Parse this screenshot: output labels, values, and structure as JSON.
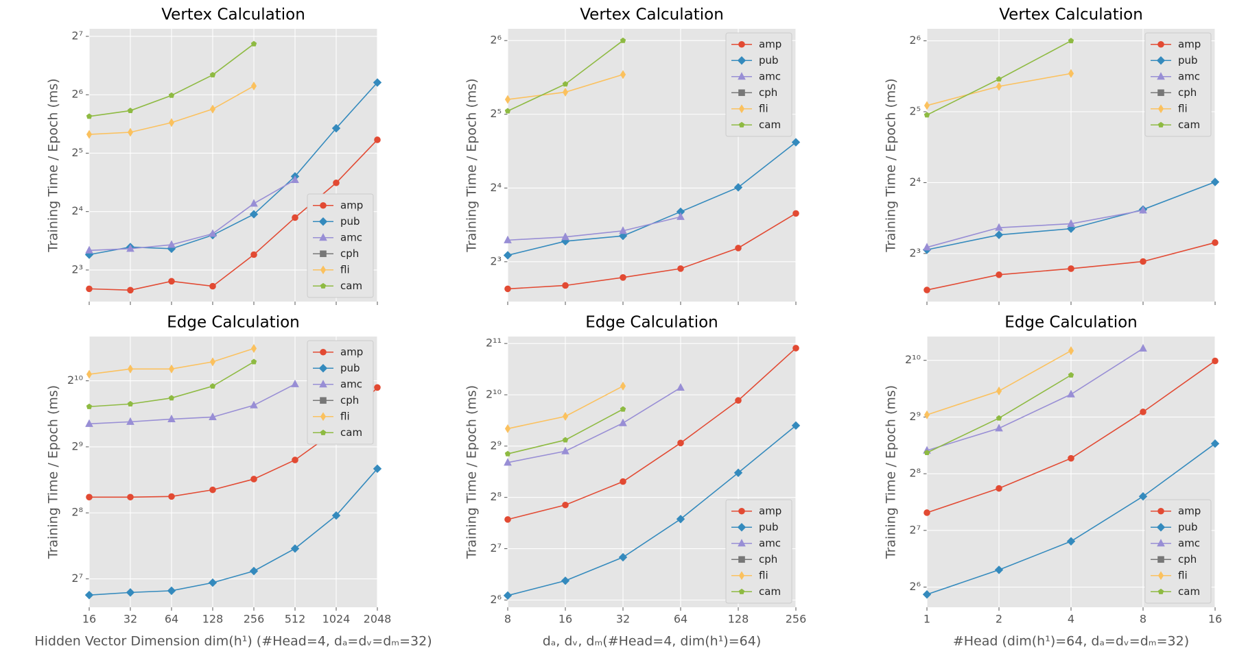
{
  "chart_data": [
    {
      "type": "line",
      "title": "Vertex Calculation",
      "ylabel": "Training Time / Epoch (ms)",
      "xlog": true,
      "ylog": true,
      "grid": true,
      "legend": "lower right",
      "xticklabels": false,
      "x": [
        16,
        32,
        64,
        128,
        256,
        512,
        1024,
        2048
      ],
      "xlim": [
        16,
        2048
      ],
      "xticks": [
        16,
        32,
        64,
        128,
        256,
        512,
        1024,
        2048
      ],
      "ylim": [
        5.5,
        140
      ],
      "yticks": [
        {
          "value": 8,
          "label": "2³"
        },
        {
          "value": 16,
          "label": "2⁴"
        },
        {
          "value": 32,
          "label": "2⁵"
        },
        {
          "value": 64,
          "label": "2⁶"
        },
        {
          "value": 128,
          "label": "2⁷"
        }
      ],
      "series": [
        {
          "name": "amp",
          "color": "#E24A33",
          "marker": "circle",
          "values": [
            6.4,
            6.3,
            7.0,
            6.6,
            9.6,
            14.9,
            22.5,
            37.5
          ]
        },
        {
          "name": "pub",
          "color": "#348ABD",
          "marker": "diamond",
          "values": [
            9.6,
            10.5,
            10.3,
            12.1,
            15.5,
            24.3,
            43,
            74
          ]
        },
        {
          "name": "amc",
          "color": "#988ED5",
          "marker": "triangle",
          "values": [
            10.1,
            10.3,
            10.8,
            12.3,
            17.6,
            23.3,
            null,
            null
          ]
        },
        {
          "name": "cph",
          "color": "#777777",
          "marker": "square",
          "values": [
            null,
            null,
            null,
            null,
            null,
            null,
            null,
            null
          ]
        },
        {
          "name": "fli",
          "color": "#FBC15E",
          "marker": "thin_diamond",
          "values": [
            40,
            41,
            46,
            54,
            71,
            null,
            null,
            null
          ]
        },
        {
          "name": "cam",
          "color": "#8EBA42",
          "marker": "pentagon",
          "values": [
            49.5,
            53,
            63.5,
            81,
            117,
            null,
            null,
            null
          ]
        }
      ]
    },
    {
      "type": "line",
      "title": "Vertex Calculation",
      "ylabel": "Training Time / Epoch (ms)",
      "xlog": true,
      "ylog": true,
      "grid": true,
      "legend": "upper right",
      "xticklabels": false,
      "x": [
        8,
        16,
        32,
        64,
        128,
        256
      ],
      "xlim": [
        8,
        256
      ],
      "xticks": [
        8,
        16,
        32,
        64,
        128,
        256
      ],
      "ylim": [
        5.5,
        71.5
      ],
      "yticks": [
        {
          "value": 8,
          "label": "2³"
        },
        {
          "value": 16,
          "label": "2⁴"
        },
        {
          "value": 32,
          "label": "2⁵"
        },
        {
          "value": 64,
          "label": "2⁶"
        }
      ],
      "series": [
        {
          "name": "amp",
          "color": "#E24A33",
          "marker": "circle",
          "values": [
            6.2,
            6.4,
            6.9,
            7.5,
            9.1,
            12.6
          ]
        },
        {
          "name": "pub",
          "color": "#348ABD",
          "marker": "diamond",
          "values": [
            8.5,
            9.7,
            10.2,
            12.8,
            16.1,
            24.6
          ]
        },
        {
          "name": "amc",
          "color": "#988ED5",
          "marker": "triangle",
          "values": [
            9.8,
            10.1,
            10.7,
            12.2,
            null,
            null
          ]
        },
        {
          "name": "cph",
          "color": "#777777",
          "marker": "square",
          "values": [
            null,
            null,
            null,
            null,
            null,
            null
          ]
        },
        {
          "name": "fli",
          "color": "#FBC15E",
          "marker": "thin_diamond",
          "values": [
            36.8,
            39.4,
            46.5,
            null,
            null,
            null
          ]
        },
        {
          "name": "cam",
          "color": "#8EBA42",
          "marker": "pentagon",
          "values": [
            33,
            42.5,
            64,
            null,
            null,
            null
          ]
        }
      ]
    },
    {
      "type": "line",
      "title": "Vertex Calculation",
      "ylabel": "Training Time / Epoch (ms)",
      "xlog": true,
      "ylog": true,
      "grid": true,
      "legend": "upper right",
      "xticklabels": false,
      "x": [
        1,
        2,
        4,
        8,
        16
      ],
      "xlim": [
        1,
        16
      ],
      "xticks": [
        1,
        2,
        4,
        8,
        16
      ],
      "ylim": [
        5.0,
        72
      ],
      "yticks": [
        {
          "value": 8,
          "label": "2³"
        },
        {
          "value": 16,
          "label": "2⁴"
        },
        {
          "value": 32,
          "label": "2⁵"
        },
        {
          "value": 64,
          "label": "2⁶"
        }
      ],
      "series": [
        {
          "name": "amp",
          "color": "#E24A33",
          "marker": "circle",
          "values": [
            5.6,
            6.5,
            6.9,
            7.4,
            8.9
          ]
        },
        {
          "name": "pub",
          "color": "#348ABD",
          "marker": "diamond",
          "values": [
            8.3,
            9.6,
            10.2,
            12.3,
            16.1
          ]
        },
        {
          "name": "amc",
          "color": "#988ED5",
          "marker": "triangle",
          "values": [
            8.5,
            10.3,
            10.7,
            12.2,
            null
          ]
        },
        {
          "name": "cph",
          "color": "#777777",
          "marker": "square",
          "values": [
            null,
            null,
            null,
            null,
            null
          ]
        },
        {
          "name": "fli",
          "color": "#FBC15E",
          "marker": "thin_diamond",
          "values": [
            34,
            41,
            46.5,
            null,
            null
          ]
        },
        {
          "name": "cam",
          "color": "#8EBA42",
          "marker": "pentagon",
          "values": [
            31,
            44,
            64,
            null,
            null
          ]
        }
      ]
    },
    {
      "type": "line",
      "title": "Edge Calculation",
      "ylabel": "Training Time / Epoch (ms)",
      "xlabel": "Hidden Vector Dimension dim(h¹) (#Head=4, dₐ=dᵥ=dₘ=32)",
      "xlog": true,
      "ylog": true,
      "grid": true,
      "legend": "upper right",
      "xticklabels": true,
      "x": [
        16,
        32,
        64,
        128,
        256,
        512,
        1024,
        2048
      ],
      "xlim": [
        16,
        2048
      ],
      "xticks": [
        16,
        32,
        64,
        128,
        256,
        512,
        1024,
        2048
      ],
      "ylim": [
        95,
        1630
      ],
      "yticks": [
        {
          "value": 128,
          "label": "2⁷"
        },
        {
          "value": 256,
          "label": "2⁸"
        },
        {
          "value": 512,
          "label": "2⁹"
        },
        {
          "value": 1024,
          "label": "2¹⁰"
        }
      ],
      "series": [
        {
          "name": "amp",
          "color": "#E24A33",
          "marker": "circle",
          "values": [
            302,
            302,
            304,
            326,
            365,
            446,
            609,
            955
          ]
        },
        {
          "name": "pub",
          "color": "#348ABD",
          "marker": "diamond",
          "values": [
            108,
            111,
            113,
            123,
            139,
            176,
            249,
            407
          ]
        },
        {
          "name": "amc",
          "color": "#988ED5",
          "marker": "triangle",
          "values": [
            652,
            666,
            685,
            700,
            792,
            989,
            null,
            null
          ]
        },
        {
          "name": "cph",
          "color": "#777777",
          "marker": "square",
          "values": [
            null,
            null,
            null,
            null,
            null,
            null,
            null,
            null
          ]
        },
        {
          "name": "fli",
          "color": "#FBC15E",
          "marker": "thin_diamond",
          "values": [
            1097,
            1160,
            1160,
            1250,
            1438,
            null,
            null,
            null
          ]
        },
        {
          "name": "cam",
          "color": "#8EBA42",
          "marker": "pentagon",
          "values": [
            781,
            803,
            855,
            968,
            1250,
            null,
            null,
            null
          ]
        }
      ]
    },
    {
      "type": "line",
      "title": "Edge Calculation",
      "ylabel": "Training Time / Epoch (ms)",
      "xlabel": "dₐ, dᵥ, dₘ(#Head=4, dim(h¹)=64)",
      "xlog": true,
      "ylog": true,
      "grid": true,
      "legend": "lower right",
      "xticklabels": true,
      "x": [
        8,
        16,
        32,
        64,
        128,
        256
      ],
      "xlim": [
        8,
        256
      ],
      "xticks": [
        8,
        16,
        32,
        64,
        128,
        256
      ],
      "ylim": [
        58,
        2250
      ],
      "yticks": [
        {
          "value": 64,
          "label": "2⁶"
        },
        {
          "value": 128,
          "label": "2⁷"
        },
        {
          "value": 256,
          "label": "2⁸"
        },
        {
          "value": 512,
          "label": "2⁹"
        },
        {
          "value": 1024,
          "label": "2¹⁰"
        },
        {
          "value": 2048,
          "label": "2¹¹"
        }
      ],
      "series": [
        {
          "name": "amp",
          "color": "#E24A33",
          "marker": "circle",
          "values": [
            190,
            231,
            317,
            534,
            949,
            1924
          ]
        },
        {
          "name": "pub",
          "color": "#348ABD",
          "marker": "diamond",
          "values": [
            68,
            83,
            114,
            191,
            357,
            676
          ]
        },
        {
          "name": "amc",
          "color": "#988ED5",
          "marker": "triangle",
          "values": [
            410,
            478,
            699,
            1128,
            null,
            null
          ]
        },
        {
          "name": "cph",
          "color": "#777777",
          "marker": "square",
          "values": [
            null,
            null,
            null,
            null,
            null,
            null
          ]
        },
        {
          "name": "fli",
          "color": "#FBC15E",
          "marker": "thin_diamond",
          "values": [
            648,
            765,
            1152,
            null,
            null,
            null
          ]
        },
        {
          "name": "cam",
          "color": "#8EBA42",
          "marker": "pentagon",
          "values": [
            461,
            556,
            843,
            null,
            null,
            null
          ]
        }
      ]
    },
    {
      "type": "line",
      "title": "Edge Calculation",
      "ylabel": "Training Time / Epoch (ms)",
      "xlabel": "#Head (dim(h¹)=64, dₐ=dᵥ=dₘ=32)",
      "xlog": true,
      "ylog": true,
      "grid": true,
      "legend": "lower right",
      "xticklabels": true,
      "x": [
        1,
        2,
        4,
        8,
        16
      ],
      "xlim": [
        1,
        16
      ],
      "xticks": [
        1,
        2,
        4,
        8,
        16
      ],
      "ylim": [
        50,
        1370
      ],
      "yticks": [
        {
          "value": 64,
          "label": "2⁶"
        },
        {
          "value": 128,
          "label": "2⁷"
        },
        {
          "value": 256,
          "label": "2⁸"
        },
        {
          "value": 512,
          "label": "2⁹"
        },
        {
          "value": 1024,
          "label": "2¹⁰"
        }
      ],
      "series": [
        {
          "name": "amp",
          "color": "#E24A33",
          "marker": "circle",
          "values": [
            159,
            214,
            309,
            545,
            1017
          ]
        },
        {
          "name": "pub",
          "color": "#348ABD",
          "marker": "diamond",
          "values": [
            58.5,
            79,
            112,
            194,
            370
          ]
        },
        {
          "name": "amc",
          "color": "#988ED5",
          "marker": "triangle",
          "values": [
            340,
            446,
            676,
            1184,
            null
          ]
        },
        {
          "name": "cph",
          "color": "#777777",
          "marker": "square",
          "values": [
            null,
            null,
            null,
            null,
            null
          ]
        },
        {
          "name": "fli",
          "color": "#FBC15E",
          "marker": "thin_diamond",
          "values": [
            526,
            704,
            1152,
            null,
            null
          ]
        },
        {
          "name": "cam",
          "color": "#8EBA42",
          "marker": "pentagon",
          "values": [
            331,
            505,
            855,
            null,
            null
          ]
        }
      ]
    }
  ]
}
